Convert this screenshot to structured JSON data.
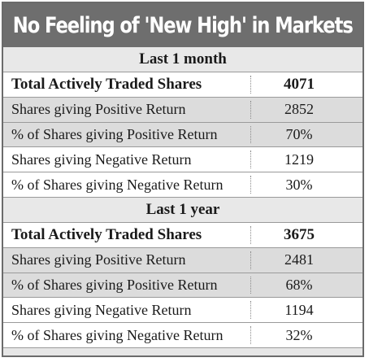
{
  "title": "No Feeling of 'New High' in Markets",
  "sections": [
    {
      "header": "Last 1 month",
      "rows": [
        {
          "label": "Total Actively Traded Shares",
          "value": "4071"
        },
        {
          "label": "Shares giving Positive Return",
          "value": "2852"
        },
        {
          "label": "% of Shares giving Positive Return",
          "value": "70%"
        },
        {
          "label": "Shares giving Negative Return",
          "value": "1219"
        },
        {
          "label": "% of Shares giving Negative Return",
          "value": "30%"
        }
      ]
    },
    {
      "header": "Last 1 year",
      "rows": [
        {
          "label": "Total Actively Traded Shares",
          "value": "3675"
        },
        {
          "label": "Shares giving Positive Return",
          "value": "2481"
        },
        {
          "label": "% of Shares giving Positive Return",
          "value": "68%"
        },
        {
          "label": "Shares giving Negative Return",
          "value": "1194"
        },
        {
          "label": "% of Shares giving Negative Return",
          "value": "32%"
        }
      ]
    }
  ]
}
